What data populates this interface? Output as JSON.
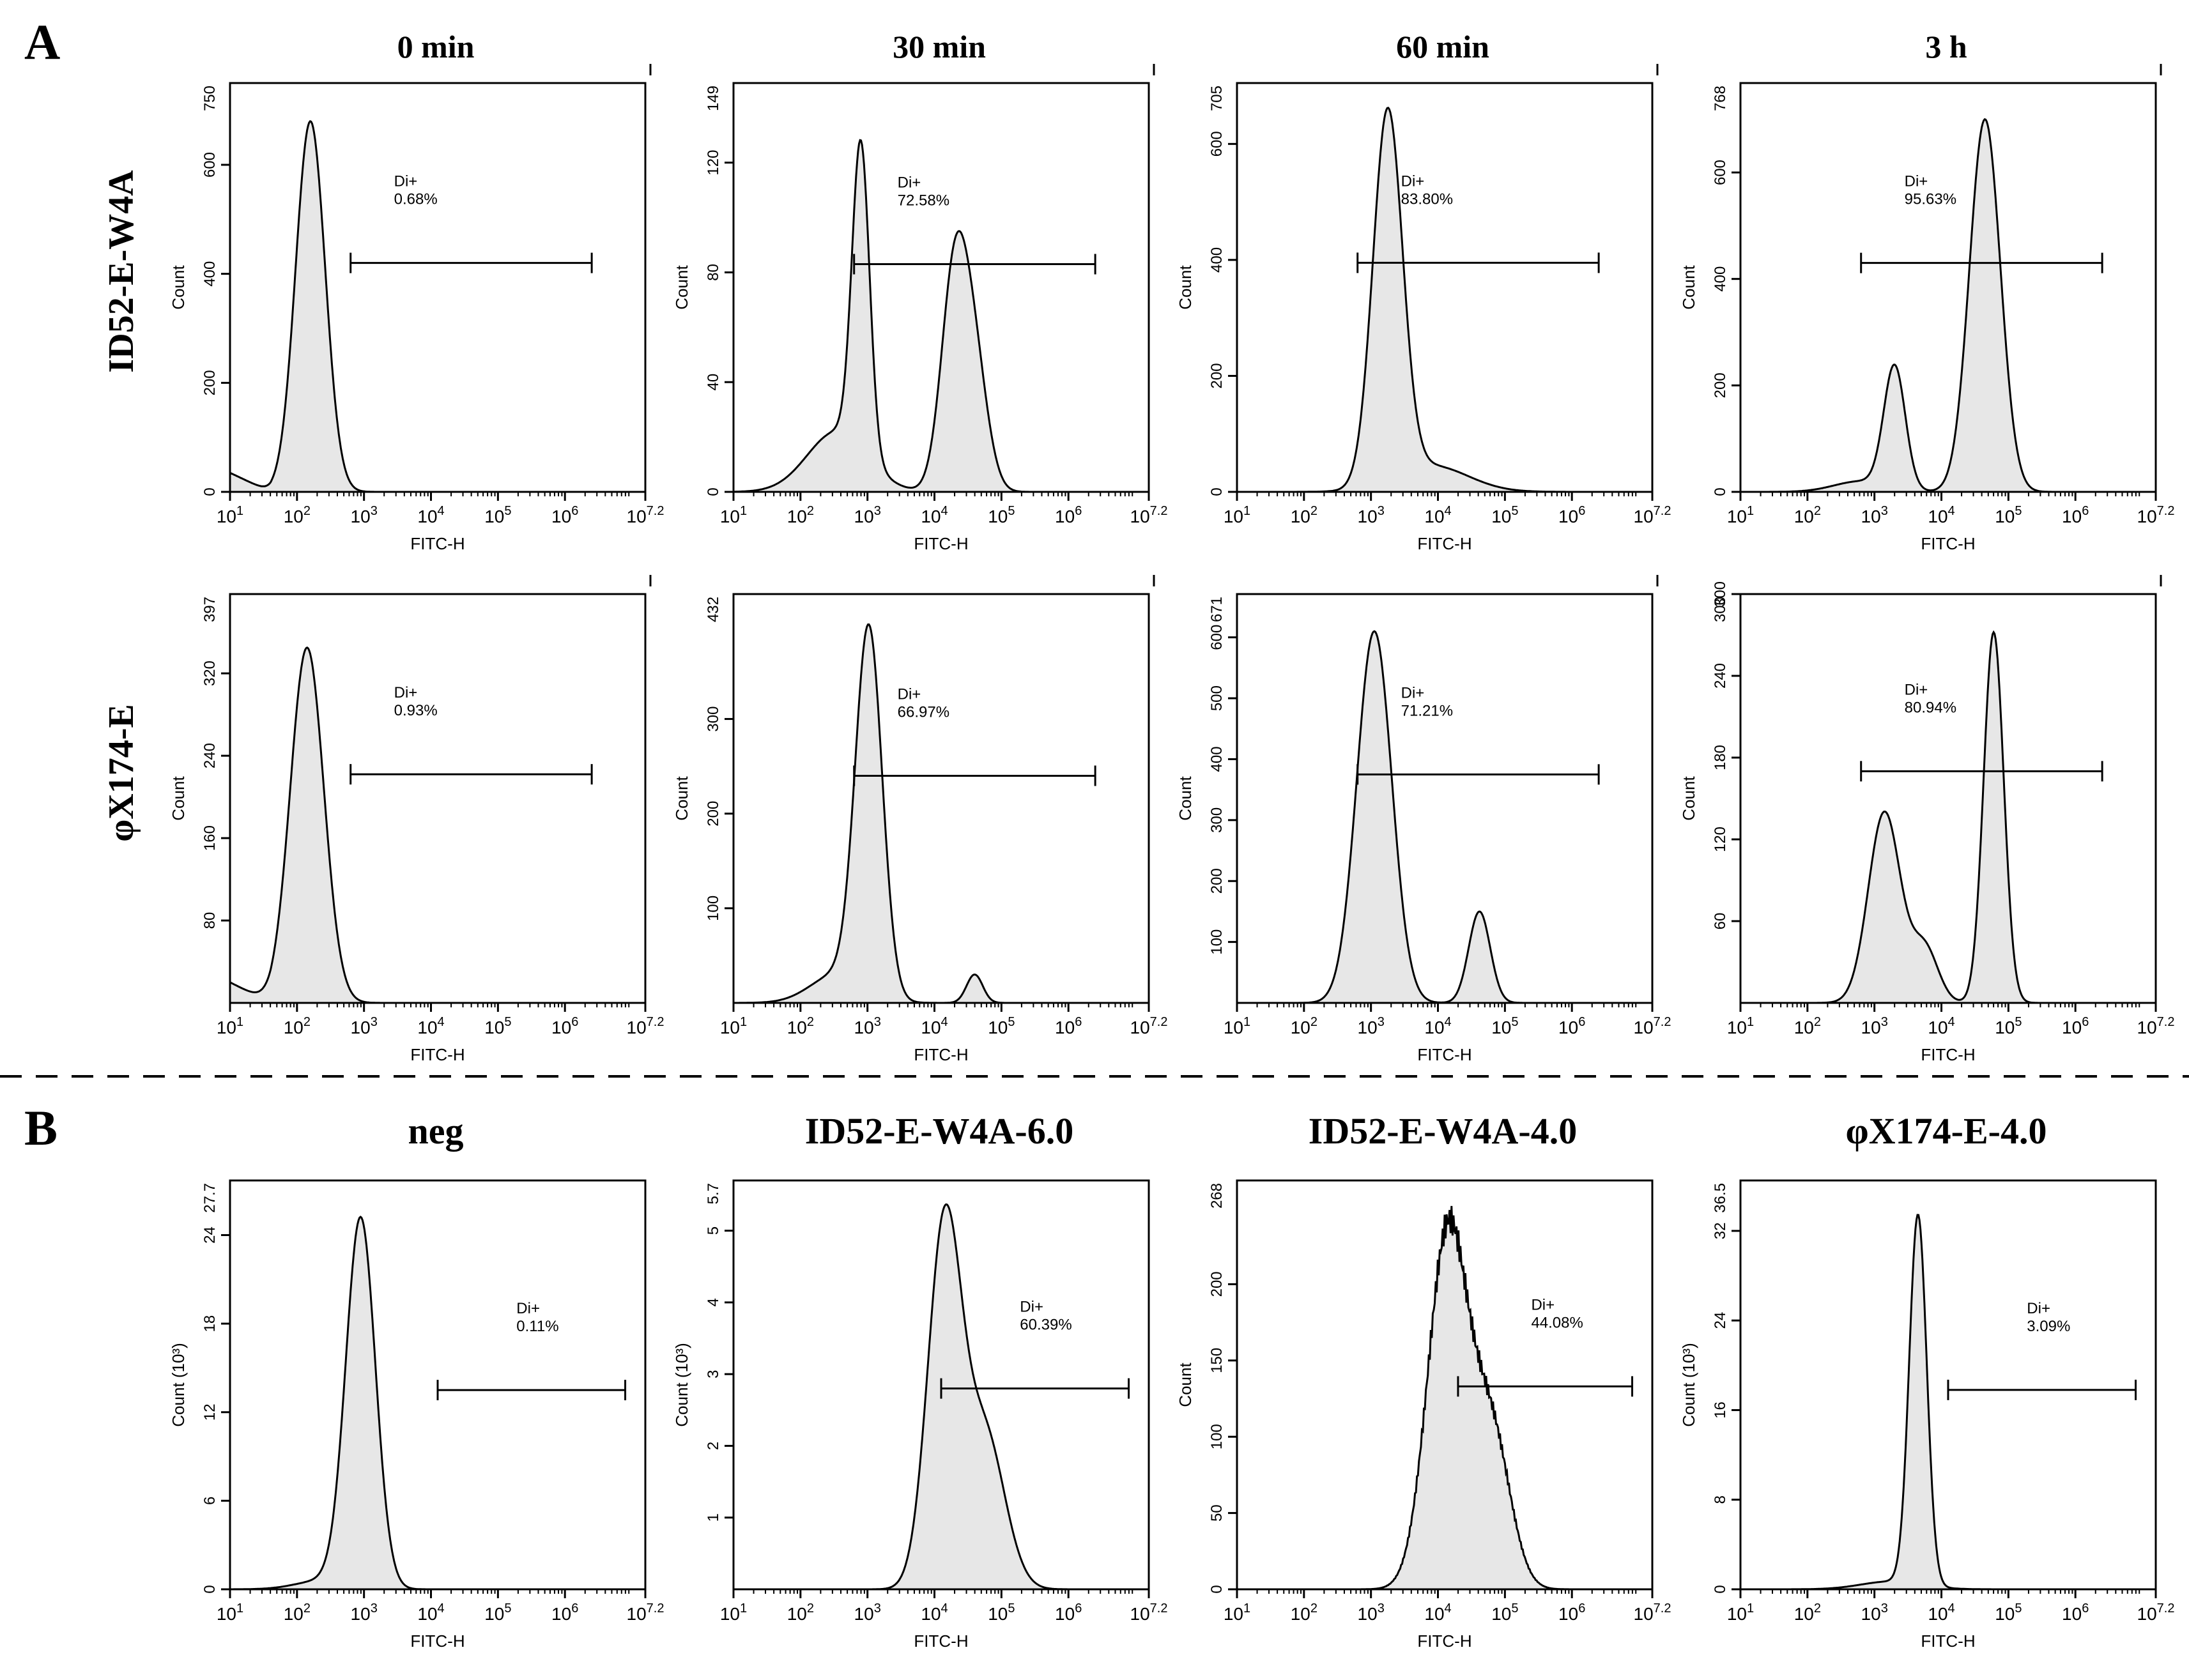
{
  "panel_labels": [
    "A",
    "B"
  ],
  "colors": {
    "fill": "#e7e7e7",
    "line": "#000000",
    "background": "#ffffff"
  },
  "row_labels": [
    "ID52-E-W4A",
    "φX174-E"
  ],
  "panel_a_timepoints": [
    "0 min",
    "30 min",
    "60 min",
    "3 h"
  ],
  "panel_b_titles": [
    "neg",
    "ID52-E-W4A-6.0",
    "ID52-E-W4A-4.0",
    "φX174-E-4.0"
  ],
  "chart_data": [
    {
      "type": "area",
      "panel": "A",
      "title": "0 min",
      "row": "ID52-E-W4A",
      "xlabel": "FITC-H",
      "ylabel": "Count",
      "xscale": "log10",
      "xlim": [
        1,
        7.2
      ],
      "ylim": [
        0,
        750
      ],
      "yticks": [
        0,
        200,
        400,
        600
      ],
      "ytop_label": "750",
      "gate": {
        "name": "Di+",
        "percent": "0.68%",
        "x_range": [
          2.8,
          6.4
        ],
        "y": 420
      },
      "peaks": [
        [
          2.2,
          680,
          0.22
        ]
      ],
      "baseline": 35
    },
    {
      "type": "area",
      "panel": "A",
      "title": "30 min",
      "row": "ID52-E-W4A",
      "xlabel": "FITC-H",
      "ylabel": "Count",
      "xscale": "log10",
      "xlim": [
        1,
        7.2
      ],
      "ylim": [
        0,
        149
      ],
      "yticks": [
        0,
        40,
        80,
        120
      ],
      "ytop_label": "149",
      "gate": {
        "name": "Di+",
        "percent": "72.58%",
        "x_range": [
          2.8,
          6.4
        ],
        "y": 83
      },
      "peaks": [
        [
          2.9,
          112,
          0.13
        ],
        [
          2.55,
          22,
          0.45
        ],
        [
          4.3,
          78,
          0.2
        ],
        [
          4.6,
          42,
          0.2
        ]
      ],
      "baseline": 0
    },
    {
      "type": "area",
      "panel": "A",
      "title": "60 min",
      "row": "ID52-E-W4A",
      "xlabel": "FITC-H",
      "ylabel": "Count",
      "xscale": "log10",
      "xlim": [
        1,
        7.2
      ],
      "ylim": [
        0,
        705
      ],
      "yticks": [
        0,
        200,
        400,
        600
      ],
      "ytop_label": "705",
      "gate": {
        "name": "Di+",
        "percent": "83.80%",
        "x_range": [
          2.8,
          6.4
        ],
        "y": 395
      },
      "peaks": [
        [
          3.25,
          640,
          0.22
        ],
        [
          3.9,
          45,
          0.55
        ]
      ],
      "baseline": 0
    },
    {
      "type": "area",
      "panel": "A",
      "title": "3 h",
      "row": "ID52-E-W4A",
      "xlabel": "FITC-H",
      "ylabel": "Count",
      "xscale": "log10",
      "xlim": [
        1,
        7.2
      ],
      "ylim": [
        0,
        768
      ],
      "yticks": [
        0,
        200,
        400,
        600
      ],
      "ytop_label": "768",
      "gate": {
        "name": "Di+",
        "percent": "95.63%",
        "x_range": [
          2.8,
          6.4
        ],
        "y": 430
      },
      "peaks": [
        [
          3.3,
          230,
          0.16
        ],
        [
          4.65,
          700,
          0.23
        ],
        [
          2.8,
          20,
          0.4
        ]
      ],
      "baseline": 0
    },
    {
      "type": "area",
      "panel": "A",
      "title": "0 min",
      "row": "φX174-E",
      "xlabel": "FITC-H",
      "ylabel": "Count",
      "xscale": "log10",
      "xlim": [
        1,
        7.2
      ],
      "ylim": [
        0,
        397
      ],
      "yticks": [
        80,
        160,
        240,
        320
      ],
      "ytop_label": "397",
      "gate": {
        "name": "Di+",
        "percent": "0.93%",
        "x_range": [
          2.8,
          6.4
        ],
        "y": 222
      },
      "peaks": [
        [
          2.15,
          345,
          0.25
        ]
      ],
      "baseline": 20
    },
    {
      "type": "area",
      "panel": "A",
      "title": "30 min",
      "row": "φX174-E",
      "xlabel": "FITC-H",
      "ylabel": "Count",
      "xscale": "log10",
      "xlim": [
        1,
        7.2
      ],
      "ylim": [
        0,
        432
      ],
      "yticks": [
        100,
        200,
        300
      ],
      "ytop_label": "432",
      "gate": {
        "name": "Di+",
        "percent": "66.97%",
        "x_range": [
          2.8,
          6.4
        ],
        "y": 240
      },
      "peaks": [
        [
          3.02,
          385,
          0.2
        ],
        [
          2.55,
          30,
          0.4
        ],
        [
          4.6,
          30,
          0.12
        ]
      ],
      "baseline": 0
    },
    {
      "type": "area",
      "panel": "A",
      "title": "60 min",
      "row": "φX174-E",
      "xlabel": "FITC-H",
      "ylabel": "Count",
      "xscale": "log10",
      "xlim": [
        1,
        7.2
      ],
      "ylim": [
        0,
        671
      ],
      "yticks": [
        100,
        200,
        300,
        400,
        500,
        600
      ],
      "ytop_label": "671",
      "gate": {
        "name": "Di+",
        "percent": "71.21%",
        "x_range": [
          2.8,
          6.4
        ],
        "y": 375
      },
      "peaks": [
        [
          3.05,
          610,
          0.26
        ],
        [
          4.62,
          150,
          0.16
        ]
      ],
      "baseline": 0
    },
    {
      "type": "area",
      "panel": "A",
      "title": "3 h",
      "row": "φX174-E",
      "xlabel": "FITC-H",
      "ylabel": "Count",
      "xscale": "log10",
      "xlim": [
        1,
        7.2
      ],
      "ylim": [
        0,
        300
      ],
      "yticks": [
        60,
        120,
        180,
        240,
        300
      ],
      "ytop_label": "300",
      "gate": {
        "name": "Di+",
        "percent": "80.94%",
        "x_range": [
          2.8,
          6.4
        ],
        "y": 170
      },
      "peaks": [
        [
          3.15,
          140,
          0.24
        ],
        [
          4.78,
          272,
          0.15
        ],
        [
          3.75,
          40,
          0.2
        ]
      ],
      "baseline": 0
    },
    {
      "type": "area",
      "panel": "B",
      "title": "neg",
      "xlabel": "FITC-H",
      "ylabel": "Count (10³)",
      "xscale": "log10",
      "xlim": [
        1,
        7.2
      ],
      "ylim": [
        0,
        27.7
      ],
      "yticks": [
        0,
        6,
        12,
        18,
        24
      ],
      "ytop_label": "27.7",
      "gate": {
        "name": "Di+",
        "percent": "0.11%",
        "x_range": [
          4.1,
          6.9
        ],
        "y": 13.5
      },
      "peaks": [
        [
          2.95,
          25,
          0.22
        ],
        [
          2.4,
          0.6,
          0.4
        ]
      ],
      "baseline": 0
    },
    {
      "type": "area",
      "panel": "B",
      "title": "ID52-E-W4A-6.0",
      "xlabel": "FITC-H",
      "ylabel": "Count (10³)",
      "xscale": "log10",
      "xlim": [
        1,
        7.2
      ],
      "ylim": [
        0,
        5.7
      ],
      "yticks": [
        1,
        2,
        3,
        4,
        5
      ],
      "ytop_label": "5.7",
      "gate": {
        "name": "Di+",
        "percent": "60.39%",
        "x_range": [
          4.1,
          6.9
        ],
        "y": 2.8
      },
      "peaks": [
        [
          4.15,
          5.05,
          0.25
        ],
        [
          4.75,
          2.15,
          0.3
        ]
      ],
      "baseline": 0
    },
    {
      "type": "area",
      "panel": "B",
      "title": "ID52-E-W4A-4.0",
      "xlabel": "FITC-H",
      "ylabel": "Count",
      "xscale": "log10",
      "xlim": [
        1,
        7.2
      ],
      "ylim": [
        0,
        268
      ],
      "yticks": [
        0,
        50,
        100,
        150,
        200
      ],
      "ytop_label": "268",
      "gate": {
        "name": "Di+",
        "percent": "44.08%",
        "x_range": [
          4.3,
          6.9
        ],
        "y": 133
      },
      "peaks": [
        [
          4.15,
          235,
          0.3
        ],
        [
          4.8,
          100,
          0.28
        ]
      ],
      "baseline": 0
    },
    {
      "type": "area",
      "panel": "B",
      "title": "φX174-E-4.0",
      "xlabel": "FITC-H",
      "ylabel": "Count (10³)",
      "xscale": "log10",
      "xlim": [
        1,
        7.2
      ],
      "ylim": [
        0,
        36.5
      ],
      "yticks": [
        0,
        8,
        16,
        24,
        32
      ],
      "ytop_label": "36.5",
      "gate": {
        "name": "Di+",
        "percent": "3.09%",
        "x_range": [
          4.1,
          6.9
        ],
        "y": 17.8
      },
      "peaks": [
        [
          3.65,
          33,
          0.13
        ],
        [
          3.25,
          0.7,
          0.45
        ]
      ],
      "baseline": 0
    }
  ],
  "x_tick_labels": [
    {
      "base": "10",
      "exp": "1",
      "at": 1
    },
    {
      "base": "10",
      "exp": "2",
      "at": 2
    },
    {
      "base": "10",
      "exp": "3",
      "at": 3
    },
    {
      "base": "10",
      "exp": "4",
      "at": 4
    },
    {
      "base": "10",
      "exp": "5",
      "at": 5
    },
    {
      "base": "10",
      "exp": "6",
      "at": 6
    },
    {
      "base": "10",
      "exp": "7.2",
      "at": 7.2
    }
  ]
}
